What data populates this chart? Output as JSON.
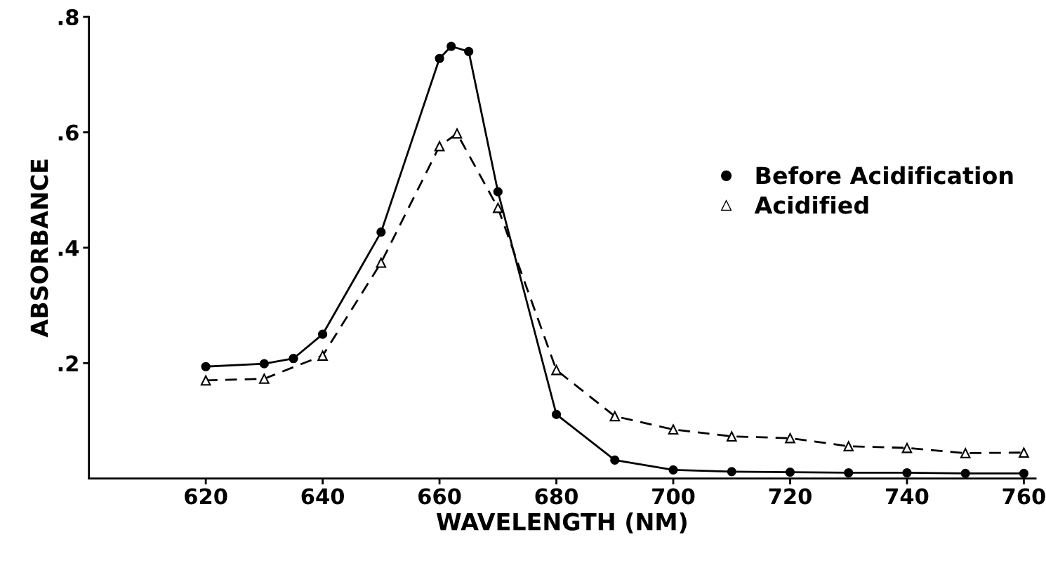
{
  "chart_data": {
    "type": "line",
    "xlabel": "WAVELENGTH (NM)",
    "ylabel": "ABSORBANCE",
    "xlim": [
      600,
      762
    ],
    "xticks": [
      620,
      640,
      660,
      680,
      700,
      720,
      740,
      760
    ],
    "ylim": [
      0,
      0.8
    ],
    "yticks": [
      {
        "value": 0.2,
        "label": ".2"
      },
      {
        "value": 0.4,
        "label": ".4"
      },
      {
        "value": 0.6,
        "label": ".6"
      },
      {
        "value": 0.8,
        "label": ".8"
      }
    ],
    "grid": false,
    "legend": "right",
    "series": [
      {
        "name": "Before Acidification",
        "color": "#000000",
        "marker": "circle",
        "line_style": "solid",
        "x": [
          620,
          630,
          635,
          640,
          650,
          660,
          662,
          665,
          670,
          680,
          690,
          700,
          710,
          720,
          730,
          740,
          750,
          760
        ],
        "values": [
          0.194,
          0.199,
          0.208,
          0.25,
          0.427,
          0.728,
          0.749,
          0.74,
          0.497,
          0.111,
          0.032,
          0.015,
          0.012,
          0.011,
          0.01,
          0.01,
          0.009,
          0.009
        ]
      },
      {
        "name": "Acidified",
        "color": "#000000",
        "marker": "triangle",
        "line_style": "dashed",
        "x": [
          620,
          630,
          640,
          650,
          660,
          663,
          670,
          680,
          690,
          700,
          710,
          720,
          730,
          740,
          750,
          760
        ],
        "values": [
          0.17,
          0.173,
          0.213,
          0.374,
          0.576,
          0.598,
          0.469,
          0.188,
          0.108,
          0.085,
          0.073,
          0.07,
          0.056,
          0.053,
          0.044,
          0.045
        ]
      }
    ]
  }
}
